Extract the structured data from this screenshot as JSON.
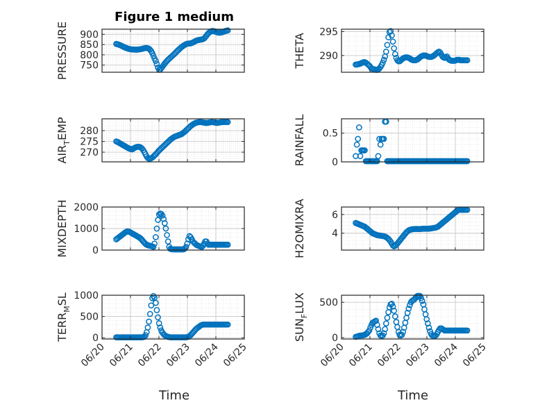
{
  "figure_title": "Figure 1 medium",
  "xlabel": "Time",
  "colors": {
    "marker": "#0072BD",
    "axis": "#262626",
    "grid": "#c8c8c8",
    "background": "#ffffff"
  },
  "chart_data": [
    {
      "type": "scatter",
      "id": "pressure",
      "title": "Figure 1 medium",
      "ylabel": "PRESSURE",
      "xlabel": "",
      "ylim": [
        715,
        925
      ],
      "yticks": [
        750,
        800,
        850,
        900
      ],
      "xlim": [
        "06/20",
        "06/25"
      ],
      "xticks": [],
      "grid": true,
      "points_desc": "start 06/20 12:00 hourly",
      "y": [
        853,
        852,
        850,
        848,
        846,
        843,
        840,
        838,
        835,
        833,
        831,
        829,
        828,
        827,
        826,
        826,
        826,
        825,
        825,
        826,
        826,
        827,
        828,
        829,
        831,
        832,
        833,
        833,
        832,
        830,
        825,
        818,
        808,
        795,
        782,
        770,
        755,
        738,
        727,
        728,
        735,
        742,
        750,
        757,
        764,
        770,
        776,
        781,
        786,
        791,
        796,
        801,
        806,
        812,
        818,
        823,
        828,
        833,
        838,
        842,
        846,
        849,
        852,
        854,
        855,
        855,
        856,
        858,
        860,
        863,
        866,
        869,
        871,
        872,
        873,
        874,
        875,
        877,
        880,
        886,
        893,
        900,
        906,
        911,
        914,
        916,
        916,
        915,
        913,
        911,
        909,
        908,
        908,
        909,
        910,
        912,
        914,
        916,
        918,
        919
      ]
    },
    {
      "type": "scatter",
      "id": "theta",
      "title": "",
      "ylabel": "THETA",
      "xlabel": "",
      "ylim": [
        286.5,
        295.5
      ],
      "yticks": [
        290,
        295
      ],
      "xlim": [
        "06/20",
        "06/25"
      ],
      "xticks": [],
      "grid": true,
      "y": [
        288.1,
        288.1,
        288.2,
        288.2,
        288.3,
        288.4,
        288.5,
        288.6,
        288.6,
        288.5,
        288.3,
        288.1,
        287.9,
        287.6,
        287.3,
        287.2,
        287.1,
        287.1,
        287.0,
        287.0,
        287.1,
        287.3,
        287.6,
        288.0,
        288.5,
        289.1,
        289.8,
        290.8,
        292.2,
        293.8,
        294.9,
        295.1,
        294.2,
        292.9,
        291.5,
        290.3,
        289.5,
        289.0,
        288.8,
        288.8,
        289.0,
        289.2,
        289.4,
        289.5,
        289.6,
        289.6,
        289.6,
        289.5,
        289.4,
        289.2,
        289.1,
        289.0,
        289.0,
        289.0,
        289.1,
        289.2,
        289.4,
        289.6,
        289.8,
        289.9,
        290.0,
        290.0,
        290.0,
        289.9,
        289.8,
        289.7,
        289.7,
        289.7,
        289.8,
        289.9,
        290.1,
        290.3,
        290.5,
        290.7,
        290.8,
        290.6,
        290.2,
        289.8,
        289.6,
        289.5,
        289.6,
        289.8,
        289.4,
        289.1,
        289.0,
        288.9,
        288.9,
        288.9,
        288.9,
        289.0,
        289.1,
        289.1,
        289.1,
        289.0,
        289.0,
        289.0,
        289.0,
        289.0,
        289.0,
        289.0
      ]
    },
    {
      "type": "scatter",
      "id": "air_temp",
      "title": "",
      "ylabel_main": "AIR",
      "ylabel_sub": "T",
      "ylabel_rest": "EMP",
      "xlabel": "",
      "ylim": [
        265.5,
        285.5
      ],
      "yticks": [
        270,
        275,
        280
      ],
      "xlim": [
        "06/20",
        "06/25"
      ],
      "xticks": [],
      "grid": true,
      "y": [
        275.0,
        274.8,
        274.5,
        274.2,
        273.9,
        273.6,
        273.3,
        273.0,
        272.7,
        272.4,
        272.1,
        271.8,
        271.6,
        271.4,
        271.3,
        271.6,
        271.9,
        272.2,
        272.4,
        272.5,
        272.5,
        272.4,
        272.1,
        271.6,
        270.9,
        270.0,
        269.0,
        268.0,
        267.3,
        267.0,
        267.0,
        267.2,
        267.5,
        268.0,
        268.5,
        269.0,
        269.6,
        270.2,
        270.8,
        271.3,
        271.8,
        272.3,
        272.8,
        273.3,
        273.8,
        274.3,
        274.8,
        275.3,
        275.8,
        276.2,
        276.6,
        276.9,
        277.2,
        277.4,
        277.6,
        277.8,
        278.0,
        278.2,
        278.4,
        278.8,
        279.2,
        279.6,
        280.1,
        280.6,
        281.1,
        281.6,
        282.1,
        282.5,
        282.9,
        283.2,
        283.5,
        283.7,
        283.8,
        283.9,
        284.0,
        284.0,
        283.9,
        283.8,
        283.7,
        283.6,
        283.6,
        283.6,
        283.7,
        283.8,
        283.9,
        284.0,
        283.9,
        283.8,
        283.7,
        283.6,
        283.6,
        283.7,
        283.8,
        283.9,
        284.0,
        284.0,
        284.0,
        284.0,
        284.0,
        284.0
      ]
    },
    {
      "type": "scatter",
      "id": "rainfall",
      "title": "",
      "ylabel": "RAINFALL",
      "xlabel": "",
      "ylim": [
        0,
        0.75
      ],
      "yticks": [
        0,
        0.5
      ],
      "xlim": [
        "06/20",
        "06/25"
      ],
      "xticks": [],
      "grid": true,
      "y": [
        0.1,
        0.3,
        0.4,
        0.6,
        0.1,
        0.2,
        0.2,
        0.2,
        0.2,
        0.0,
        0.0,
        0.0,
        0.0,
        0.0,
        0.0,
        0.0,
        0.0,
        0.0,
        0.0,
        0.0,
        0.1,
        0.4,
        0.3,
        0.4,
        0.4,
        0.4,
        0.7,
        0.7,
        0.0,
        0.0,
        0.0,
        0.0,
        0.0,
        0.0,
        0.0,
        0.0,
        0.0,
        0.0,
        0.0,
        0.0,
        0.0,
        0.0,
        0.0,
        0.0,
        0.0,
        0.0,
        0.0,
        0.0,
        0.0,
        0.0,
        0.0,
        0.0,
        0.0,
        0.0,
        0.0,
        0.0,
        0.0,
        0.0,
        0.0,
        0.0,
        0.0,
        0.0,
        0.0,
        0.0,
        0.0,
        0.0,
        0.0,
        0.0,
        0.0,
        0.0,
        0.0,
        0.0,
        0.0,
        0.0,
        0.0,
        0.0,
        0.0,
        0.0,
        0.0,
        0.0,
        0.0,
        0.0,
        0.0,
        0.0,
        0.0,
        0.0,
        0.0,
        0.0,
        0.0,
        0.0,
        0.0,
        0.0,
        0.0,
        0.0,
        0.0,
        0.0,
        0.0,
        0.0,
        0.0,
        0.0
      ]
    },
    {
      "type": "scatter",
      "id": "mixdepth",
      "title": "",
      "ylabel": "MIXDEPTH",
      "xlabel": "",
      "ylim": [
        0,
        2000
      ],
      "yticks": [
        0,
        1000,
        2000
      ],
      "xlim": [
        "06/20",
        "06/25"
      ],
      "xticks": [],
      "grid": true,
      "y": [
        500,
        540,
        580,
        620,
        660,
        700,
        740,
        780,
        820,
        850,
        870,
        860,
        840,
        810,
        780,
        750,
        720,
        690,
        660,
        630,
        600,
        570,
        520,
        460,
        400,
        340,
        290,
        250,
        230,
        210,
        200,
        190,
        170,
        150,
        300,
        600,
        1000,
        1400,
        1650,
        1700,
        1680,
        1600,
        1450,
        1250,
        1000,
        700,
        400,
        150,
        60,
        40,
        35,
        30,
        25,
        20,
        20,
        20,
        20,
        20,
        20,
        25,
        40,
        80,
        150,
        300,
        500,
        650,
        600,
        500,
        400,
        350,
        300,
        250,
        220,
        200,
        180,
        160,
        150,
        200,
        300,
        400,
        400,
        300,
        250,
        250,
        250,
        250,
        250,
        250,
        250,
        250,
        250,
        250,
        250,
        250,
        250,
        250,
        250,
        250,
        250,
        250
      ]
    },
    {
      "type": "scatter",
      "id": "h2omixra",
      "title": "",
      "ylabel": "H2OMIXRA",
      "xlabel": "",
      "ylim": [
        2.2,
        6.8
      ],
      "yticks": [
        4,
        6
      ],
      "xlim": [
        "06/20",
        "06/25"
      ],
      "xticks": [],
      "grid": true,
      "y": [
        5.1,
        5.05,
        5.0,
        4.95,
        4.9,
        4.85,
        4.8,
        4.75,
        4.7,
        4.6,
        4.5,
        4.4,
        4.3,
        4.2,
        4.1,
        4.0,
        3.95,
        3.9,
        3.85,
        3.8,
        3.78,
        3.76,
        3.74,
        3.72,
        3.7,
        3.68,
        3.64,
        3.58,
        3.5,
        3.4,
        3.25,
        3.1,
        2.9,
        2.7,
        2.6,
        2.65,
        2.75,
        2.9,
        3.05,
        3.2,
        3.35,
        3.5,
        3.65,
        3.8,
        3.95,
        4.1,
        4.2,
        4.3,
        4.35,
        4.4,
        4.42,
        4.44,
        4.45,
        4.46,
        4.46,
        4.45,
        4.45,
        4.45,
        4.46,
        4.47,
        4.48,
        4.48,
        4.48,
        4.48,
        4.48,
        4.49,
        4.5,
        4.52,
        4.54,
        4.56,
        4.58,
        4.6,
        4.65,
        4.7,
        4.8,
        4.9,
        5.0,
        5.1,
        5.2,
        5.3,
        5.4,
        5.5,
        5.6,
        5.7,
        5.8,
        5.9,
        6.0,
        6.1,
        6.2,
        6.3,
        6.4,
        6.5,
        6.5,
        6.5,
        6.5,
        6.5,
        6.5,
        6.5,
        6.5,
        6.5
      ]
    },
    {
      "type": "scatter",
      "id": "terr_msl",
      "title": "",
      "ylabel_main": "TERR",
      "ylabel_sub": "M",
      "ylabel_rest": "SL",
      "xlabel": "Time",
      "ylim": [
        -30,
        1000
      ],
      "yticks": [
        0,
        500,
        1000
      ],
      "xlim": [
        "06/20",
        "06/25"
      ],
      "xticks": [
        "06/20",
        "06/21",
        "06/22",
        "06/23",
        "06/24",
        "06/25"
      ],
      "grid": true,
      "y": [
        10,
        10,
        10,
        10,
        10,
        10,
        10,
        10,
        10,
        10,
        10,
        10,
        10,
        10,
        10,
        10,
        10,
        10,
        10,
        10,
        10,
        10,
        10,
        10,
        15,
        25,
        60,
        130,
        240,
        380,
        560,
        760,
        930,
        980,
        940,
        820,
        650,
        480,
        340,
        240,
        170,
        120,
        85,
        60,
        40,
        30,
        20,
        15,
        10,
        10,
        10,
        10,
        10,
        10,
        10,
        10,
        10,
        10,
        10,
        10,
        10,
        10,
        10,
        15,
        25,
        40,
        60,
        90,
        120,
        150,
        180,
        210,
        230,
        250,
        270,
        290,
        300,
        310,
        310,
        310,
        310,
        310,
        310,
        310,
        310,
        310,
        310,
        310,
        310,
        310,
        310,
        310,
        310,
        310,
        310,
        310,
        310,
        310,
        310,
        310
      ]
    },
    {
      "type": "scatter",
      "id": "sun_flux",
      "title": "",
      "ylabel_main": "SUN",
      "ylabel_sub": "F",
      "ylabel_rest": "LUX",
      "xlabel": "Time",
      "ylim": [
        -20,
        600
      ],
      "yticks": [
        0,
        500
      ],
      "xlim": [
        "06/20",
        "06/25"
      ],
      "xticks": [
        "06/20",
        "06/21",
        "06/22",
        "06/23",
        "06/24",
        "06/25"
      ],
      "grid": true,
      "y": [
        10,
        15,
        20,
        25,
        30,
        30,
        30,
        35,
        40,
        50,
        60,
        80,
        100,
        140,
        180,
        210,
        220,
        230,
        240,
        180,
        120,
        60,
        30,
        20,
        30,
        60,
        120,
        200,
        280,
        360,
        430,
        470,
        480,
        440,
        380,
        300,
        220,
        150,
        80,
        40,
        30,
        40,
        80,
        140,
        210,
        280,
        350,
        410,
        460,
        500,
        520,
        530,
        540,
        560,
        580,
        590,
        600,
        590,
        560,
        520,
        470,
        400,
        330,
        260,
        200,
        140,
        90,
        50,
        30,
        20,
        20,
        30,
        50,
        80,
        110,
        130,
        130,
        120,
        110,
        100,
        100,
        100,
        100,
        100,
        100,
        100,
        100,
        100,
        100,
        100,
        100,
        100,
        100,
        100,
        100,
        100,
        100,
        100,
        100,
        100
      ]
    }
  ]
}
